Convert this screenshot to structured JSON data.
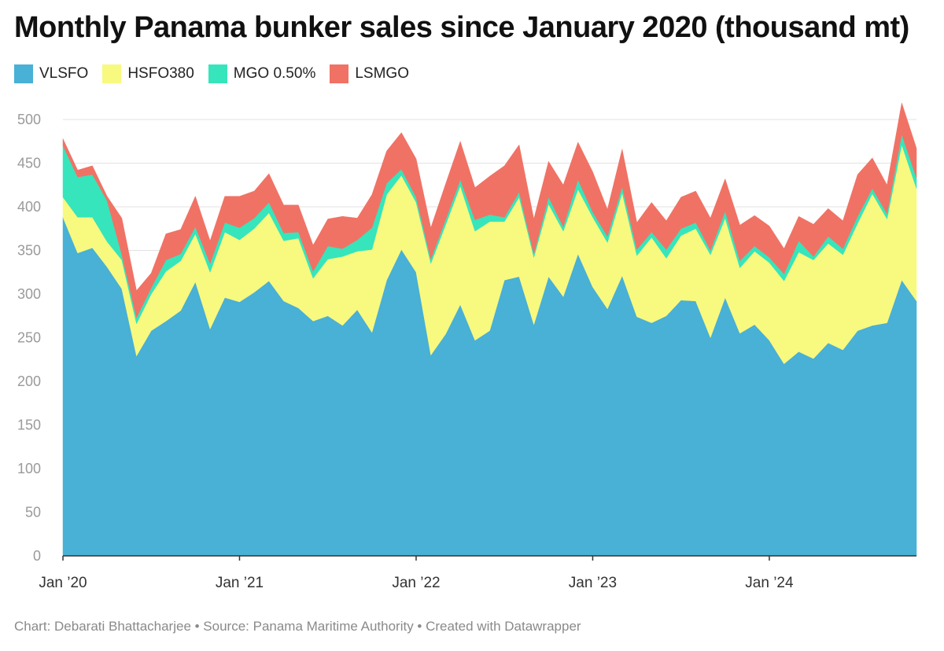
{
  "title": "Monthly Panama bunker sales since January 2020 (thousand mt)",
  "footer": "Chart: Debarati Bhattacharjee • Source: Panama Maritime Authority • Created with Datawrapper",
  "chart_data": {
    "type": "area",
    "stacked": true,
    "title": "Monthly Panama bunker sales since January 2020 (thousand mt)",
    "xlabel": "",
    "ylabel": "",
    "ylim": [
      0,
      500
    ],
    "yticks": [
      0,
      50,
      100,
      150,
      200,
      250,
      300,
      350,
      400,
      450,
      500
    ],
    "x_start": "2020-01",
    "x_end": "2024-11",
    "xticks": [
      {
        "month": "2020-01",
        "label": "Jan ’20"
      },
      {
        "month": "2021-01",
        "label": "Jan ’21"
      },
      {
        "month": "2022-01",
        "label": "Jan ’22"
      },
      {
        "month": "2023-01",
        "label": "Jan ’23"
      },
      {
        "month": "2024-01",
        "label": "Jan ’24"
      }
    ],
    "grid": true,
    "legend_position": "top-left",
    "series": [
      {
        "name": "VLSFO",
        "color": "#49b0d6",
        "values": [
          388,
          347,
          353,
          331,
          306,
          229,
          258,
          269,
          281,
          314,
          260,
          296,
          291,
          302,
          315,
          292,
          284,
          269,
          275,
          264,
          282,
          256,
          316,
          351,
          325,
          230,
          254,
          288,
          247,
          258,
          316,
          320,
          265,
          320,
          297,
          346,
          308,
          283,
          321,
          274,
          267,
          275,
          293,
          292,
          250,
          296,
          255,
          265,
          247,
          220,
          234,
          226,
          244,
          236,
          258,
          264,
          267,
          316,
          292
        ]
      },
      {
        "name": "HSFO380",
        "color": "#f8f97f",
        "values": [
          23,
          41,
          35,
          29,
          33,
          37,
          42,
          57,
          57,
          55,
          65,
          75,
          71,
          73,
          78,
          69,
          80,
          49,
          65,
          79,
          67,
          95,
          98,
          85,
          80,
          105,
          125,
          136,
          125,
          125,
          67,
          91,
          77,
          83,
          75,
          74,
          80,
          76,
          95,
          70,
          98,
          66,
          74,
          83,
          95,
          91,
          75,
          84,
          89,
          95,
          114,
          113,
          114,
          109,
          123,
          151,
          119,
          155,
          129
        ]
      },
      {
        "name": "MGO 0.50%",
        "color": "#36e5bb",
        "values": [
          59,
          46,
          49,
          47,
          6,
          7,
          7,
          13,
          8,
          8,
          10,
          11,
          14,
          12,
          12,
          9,
          7,
          8,
          15,
          9,
          13,
          25,
          13,
          7,
          6,
          5,
          6,
          7,
          13,
          8,
          5,
          6,
          4,
          8,
          5,
          11,
          6,
          7,
          7,
          7,
          6,
          10,
          8,
          7,
          5,
          8,
          8,
          6,
          6,
          8,
          13,
          4,
          8,
          7,
          8,
          6,
          6,
          12,
          12
        ]
      },
      {
        "name": "LSMGO",
        "color": "#f07265",
        "values": [
          8,
          8,
          10,
          5,
          42,
          31,
          17,
          30,
          28,
          35,
          26,
          30,
          36,
          31,
          33,
          32,
          31,
          30,
          31,
          37,
          25,
          38,
          37,
          42,
          44,
          36,
          41,
          44,
          37,
          44,
          59,
          54,
          40,
          41,
          48,
          43,
          46,
          31,
          43,
          31,
          34,
          33,
          36,
          36,
          37,
          37,
          41,
          35,
          36,
          29,
          28,
          37,
          32,
          32,
          48,
          35,
          33,
          36,
          34
        ]
      }
    ]
  }
}
